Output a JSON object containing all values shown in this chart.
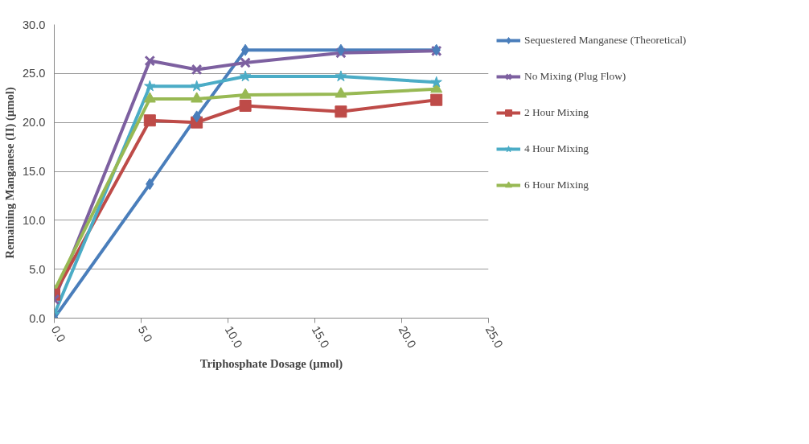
{
  "chart_data": {
    "type": "line",
    "xlabel": "Triphosphate Dosage (µmol)",
    "ylabel": "Remaining Manganese (II)  (µmol)",
    "x": [
      0.0,
      5.5,
      8.2,
      11.0,
      16.5,
      22.0
    ],
    "xlim": [
      0,
      25
    ],
    "xticks": [
      {
        "value": 0,
        "label": "0.0"
      },
      {
        "value": 5,
        "label": "5.0"
      },
      {
        "value": 10,
        "label": "10.0"
      },
      {
        "value": 15,
        "label": "15.0"
      },
      {
        "value": 20,
        "label": "20.0"
      },
      {
        "value": 25,
        "label": "25.0"
      }
    ],
    "ylim": [
      0,
      30
    ],
    "yticks": [
      {
        "value": 0,
        "label": "0.0"
      },
      {
        "value": 5,
        "label": "5.0"
      },
      {
        "value": 10,
        "label": "10.0"
      },
      {
        "value": 15,
        "label": "15.0"
      },
      {
        "value": 20,
        "label": "20.0"
      },
      {
        "value": 25,
        "label": "25.0"
      },
      {
        "value": 30,
        "label": "30.0"
      }
    ],
    "grid": "y",
    "legend": "right",
    "line_style": "solid",
    "series": [
      {
        "name": "Sequestered Manganese (Theoretical)",
        "color": "#4a7ebb",
        "marker": "diamond",
        "values": [
          0.0,
          13.7,
          20.6,
          27.4,
          27.4,
          27.4
        ]
      },
      {
        "name": "No Mixing (Plug Flow)",
        "color": "#7d60a0",
        "marker": "cross",
        "values": [
          1.9,
          26.3,
          25.4,
          26.1,
          27.1,
          27.3
        ]
      },
      {
        "name": "2 Hour Mixing",
        "color": "#be4b48",
        "marker": "square",
        "values": [
          2.4,
          20.2,
          20.0,
          21.7,
          21.1,
          22.3
        ]
      },
      {
        "name": "4 Hour Mixing",
        "color": "#4bacc6",
        "marker": "star",
        "values": [
          0.4,
          23.7,
          23.7,
          24.7,
          24.7,
          24.1
        ]
      },
      {
        "name": "6 Hour Mixing",
        "color": "#98b954",
        "marker": "triangle",
        "values": [
          2.8,
          22.4,
          22.4,
          22.8,
          22.9,
          23.4
        ]
      }
    ]
  }
}
